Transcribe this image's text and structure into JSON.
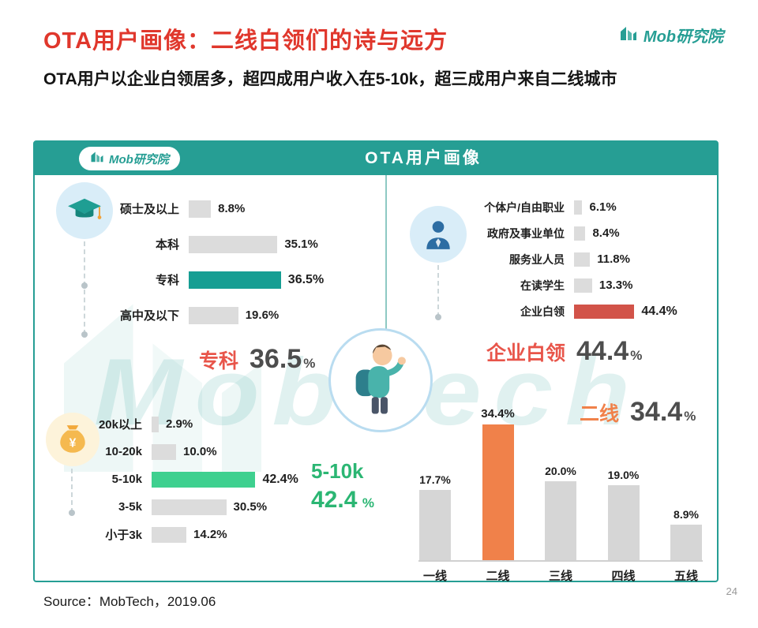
{
  "page": {
    "title": "OTA用户画像：二线白领们的诗与远方",
    "subtitle": "OTA用户以企业白领居多，超四成用户收入在5-10k，超三成用户来自二线城市",
    "source": "Source：MobTech，2019.06",
    "page_number": "24"
  },
  "brand": {
    "logo_text": "Mob研究院",
    "watermark_text": "MobTech",
    "teal": "#269e94",
    "title_red": "#e0372c"
  },
  "panel": {
    "header_title": "OTA用户画像"
  },
  "chart_data": [
    {
      "id": "education",
      "type": "bar",
      "orientation": "horizontal",
      "categories": [
        "硕士及以上",
        "本科",
        "专科",
        "高中及以下"
      ],
      "values": [
        8.8,
        35.1,
        36.5,
        19.6
      ],
      "value_labels": [
        "8.8%",
        "35.1%",
        "36.5%",
        "19.6%"
      ],
      "unit": "%",
      "highlight_index": 2,
      "bar_color": "#dcdcdc",
      "highlight_color": "#169e93",
      "callout": {
        "label": "专科",
        "value": "36.5",
        "unit": "%",
        "label_color": "#e8554a",
        "value_color": "#4d4d4d"
      }
    },
    {
      "id": "occupation",
      "type": "bar",
      "orientation": "horizontal",
      "categories": [
        "个体户/自由职业",
        "政府及事业单位",
        "服务业人员",
        "在读学生",
        "企业白领"
      ],
      "values": [
        6.1,
        8.4,
        11.8,
        13.3,
        44.4
      ],
      "value_labels": [
        "6.1%",
        "8.4%",
        "11.8%",
        "13.3%",
        "44.4%"
      ],
      "unit": "%",
      "highlight_index": 4,
      "bar_color": "#dcdcdc",
      "highlight_color": "#d25349",
      "callout": {
        "label": "企业白领",
        "value": "44.4",
        "unit": "%",
        "label_color": "#e8554a",
        "value_color": "#4d4d4d"
      }
    },
    {
      "id": "income",
      "type": "bar",
      "orientation": "horizontal",
      "categories": [
        "20k以上",
        "10-20k",
        "5-10k",
        "3-5k",
        "小于3k"
      ],
      "values": [
        2.9,
        10.0,
        42.4,
        30.5,
        14.2
      ],
      "value_labels": [
        "2.9%",
        "10.0%",
        "42.4%",
        "30.5%",
        "14.2%"
      ],
      "unit": "%",
      "highlight_index": 2,
      "bar_color": "#dcdcdc",
      "highlight_color": "#3ed08f",
      "callout": {
        "label": "5-10k",
        "value": "42.4",
        "unit": "%",
        "label_color": "#2bb673",
        "value_color": "#2bb673"
      }
    },
    {
      "id": "city_tier",
      "type": "bar",
      "orientation": "vertical",
      "categories": [
        "一线",
        "二线",
        "三线",
        "四线",
        "五线"
      ],
      "values": [
        17.7,
        34.4,
        20.0,
        19.0,
        8.9
      ],
      "value_labels": [
        "17.7%",
        "34.4%",
        "20.0%",
        "19.0%",
        "8.9%"
      ],
      "unit": "%",
      "highlight_index": 1,
      "bar_color": "#d6d6d6",
      "highlight_color": "#f0814a",
      "callout": {
        "label": "二线",
        "value": "34.4",
        "unit": "%",
        "label_color": "#f0814a",
        "value_color": "#4d4d4d"
      }
    }
  ]
}
